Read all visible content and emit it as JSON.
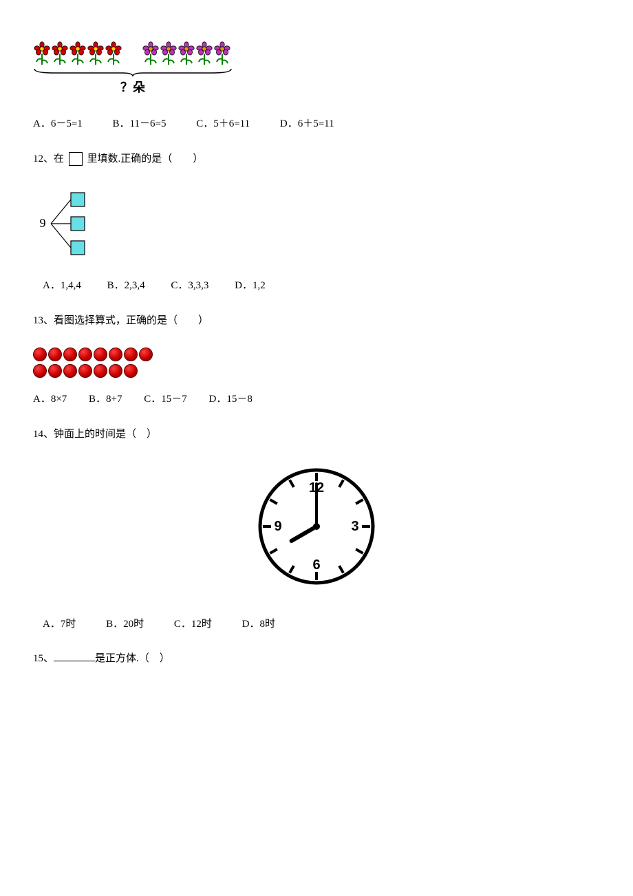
{
  "q11": {
    "flowers": {
      "left_count": 5,
      "right_count": 5,
      "left_color_petal": "#d80000",
      "left_color_center": "#ffd800",
      "right_color_petal": "#c030c0",
      "right_color_center": "#e0a000",
      "stem_color": "#008000",
      "stroke": "#000000",
      "label": "？朵"
    },
    "options": [
      "A．6－5=1",
      "B．11－6=5",
      "C．5＋6=11",
      "D．6＋5=11"
    ]
  },
  "q12": {
    "stem_pre": "12、在",
    "stem_post": "里填数.正确的是（　　）",
    "diagram": {
      "root_label": "9",
      "box_fill": "#66e0e6",
      "box_stroke": "#000000",
      "line_stroke": "#000000",
      "box_count": 3,
      "box_size": 20
    },
    "options": [
      "A．1,4,4",
      "B．2,3,4",
      "C．3,3,3",
      "D．1,2"
    ]
  },
  "q13": {
    "stem": "13、看图选择算式，正确的是（　　）",
    "dots": {
      "row_counts": [
        8,
        7
      ],
      "dot_fill": "#c80000",
      "dot_stroke": "#5a0000"
    },
    "options": [
      "A．8×7",
      "B．8+7",
      "C．15－7",
      "D．15－8"
    ]
  },
  "q14": {
    "stem": "14、钟面上的时间是（　）",
    "clock": {
      "numbers": [
        "12",
        "3",
        "6",
        "9"
      ],
      "hour": 8,
      "minute": 0,
      "face_fill": "#ffffff",
      "stroke": "#000000",
      "tick_count": 12
    },
    "options": [
      "A．7时",
      "B．20时",
      "C．12时",
      "D．8时"
    ]
  },
  "q15": {
    "stem_post": "是正方体.（　）",
    "stem_pre": "15、"
  }
}
